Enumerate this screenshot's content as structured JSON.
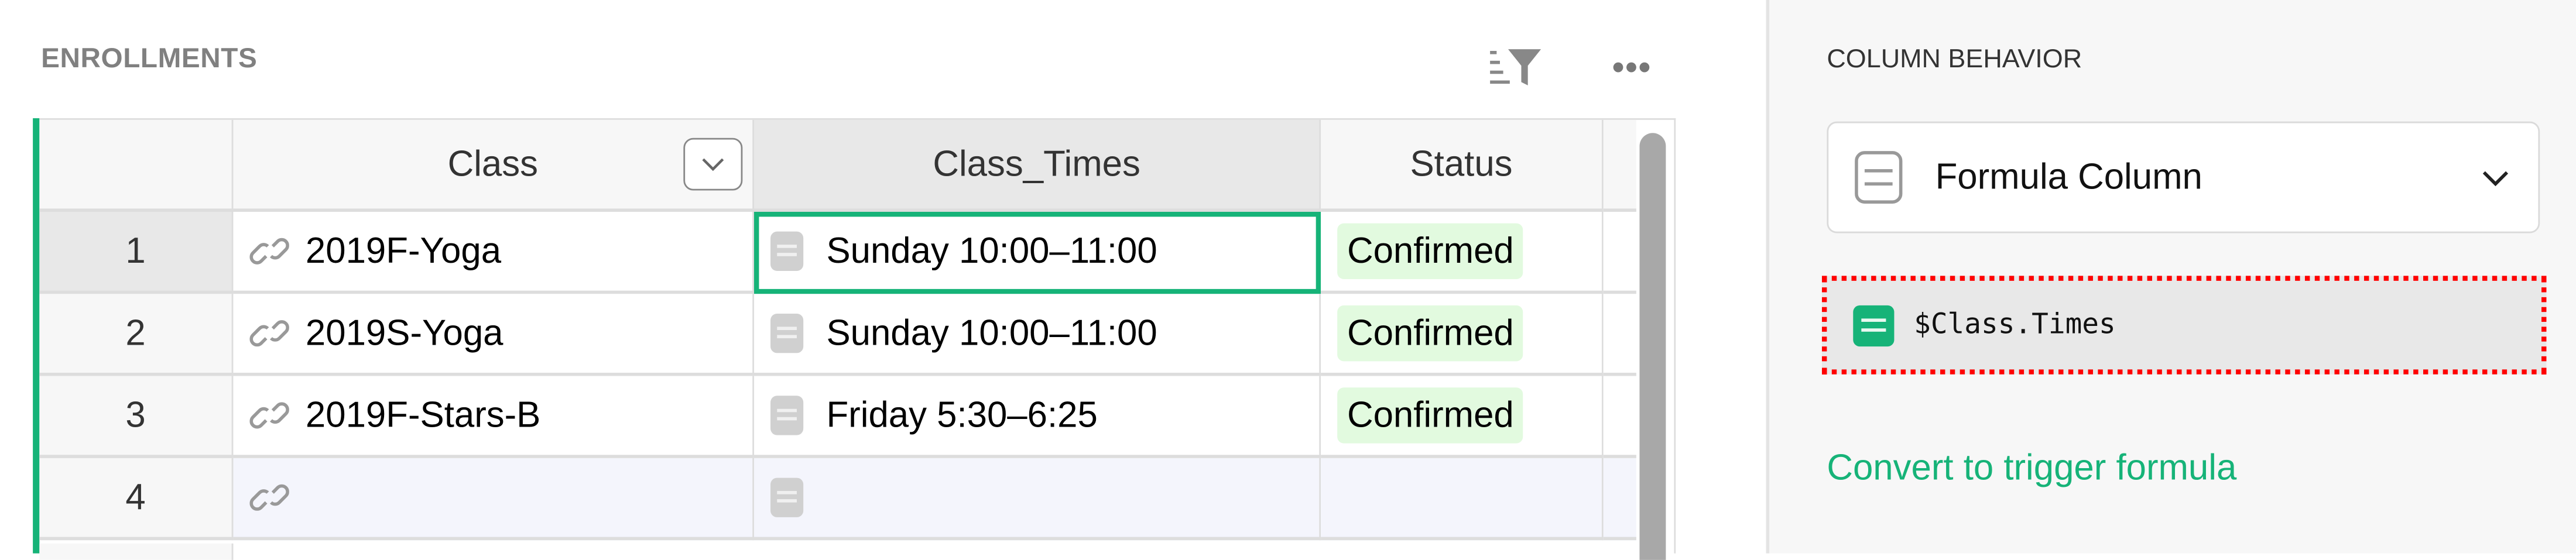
{
  "section": {
    "title": "ENROLLMENTS"
  },
  "toolbar": {
    "sort_filter_icon": "sort-filter-icon",
    "menu_icon": "more-horizontal-icon"
  },
  "table": {
    "columns": [
      {
        "label": "Class",
        "icon": "reference-link-icon"
      },
      {
        "label": "Class_Times",
        "icon": "formula-icon"
      },
      {
        "label": "Status"
      }
    ],
    "rows": [
      {
        "num": "1",
        "class": "2019F-Yoga",
        "class_times": "Sunday 10:00–11:00",
        "status": "Confirmed"
      },
      {
        "num": "2",
        "class": "2019S-Yoga",
        "class_times": "Sunday 10:00–11:00",
        "status": "Confirmed"
      },
      {
        "num": "3",
        "class": "2019F-Stars-B",
        "class_times": "Friday 5:30–6:25",
        "status": "Confirmed"
      },
      {
        "num": "4",
        "class": "",
        "class_times": "",
        "status": ""
      }
    ],
    "selected_cell": {
      "row": 1,
      "column": "Class_Times"
    }
  },
  "panel": {
    "heading": "COLUMN BEHAVIOR",
    "behavior_select": "Formula Column",
    "formula": "$Class.Times",
    "convert_link": "Convert to trigger formula"
  },
  "colors": {
    "accent": "#16b378",
    "highlight_border": "#ff0000",
    "status_badge": "#e2fadf",
    "new_row": "#f4f5fc"
  }
}
